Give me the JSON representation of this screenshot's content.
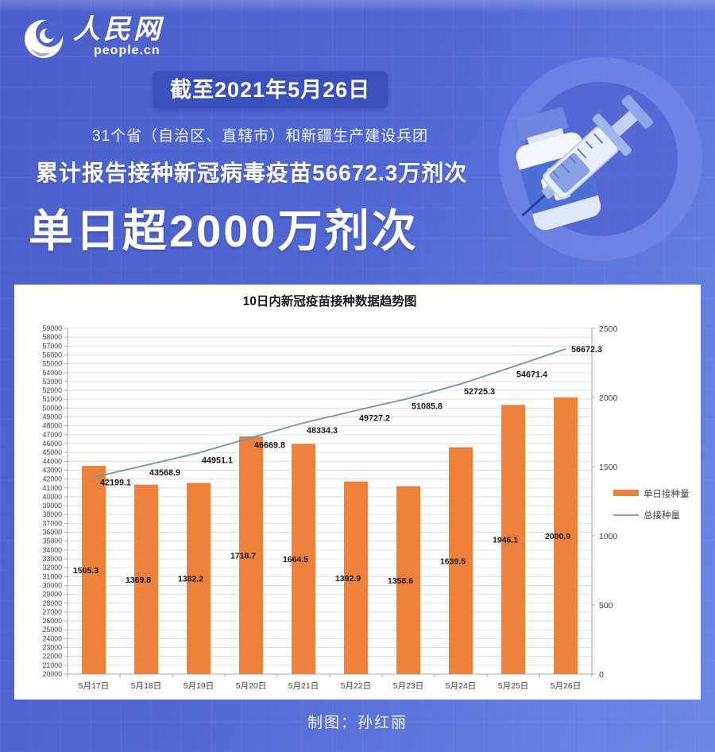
{
  "logo": {
    "cn": "人民网",
    "en": "people.cn"
  },
  "header": {
    "date_badge": "截至2021年5月26日",
    "subtitle": "31个省（自治区、直辖市）和新疆生产建设兵团",
    "cumulative_line": "累计报告接种新冠病毒疫苗56672.3万剂次",
    "headline": "单日超2000万剂次"
  },
  "footer": {
    "credit": "制图：孙红丽"
  },
  "colors": {
    "background_blue": "#5168D4",
    "badge_blue": "#3A51BD",
    "panel_white": "#FFFFFF",
    "bar_orange": "#ED8139",
    "line_steelblue": "#6E96B4"
  },
  "icons": [
    "people-cn-swirl-icon",
    "vaccine-vial-icon",
    "syringe-icon"
  ],
  "chart_data": {
    "type": "bar",
    "combo": "bar+line",
    "title": "10日内新冠疫苗接种数据趋势图",
    "categories": [
      "5月17日",
      "5月18日",
      "5月19日",
      "5月20日",
      "5月21日",
      "5月22日",
      "5月23日",
      "5月24日",
      "5月25日",
      "5月26日"
    ],
    "series": [
      {
        "name": "单日接种量",
        "type": "bar",
        "axis": "right",
        "color": "#ED8139",
        "values": [
          1505.3,
          1369.8,
          1382.2,
          1718.7,
          1664.5,
          1392.9,
          1358.6,
          1639.5,
          1946.1,
          2000.9
        ]
      },
      {
        "name": "总接种量",
        "type": "line",
        "axis": "left",
        "color": "#6E96B4",
        "values": [
          42199.1,
          43568.9,
          44951.1,
          46669.8,
          48334.3,
          49727.2,
          51085.8,
          52725.3,
          54671.4,
          56672.3
        ]
      }
    ],
    "left_axis": {
      "min": 20000,
      "max": 59000,
      "step": 1000
    },
    "right_axis": {
      "min": 0,
      "max": 2500,
      "step": 500
    },
    "grid": true,
    "legend_position": "right"
  }
}
